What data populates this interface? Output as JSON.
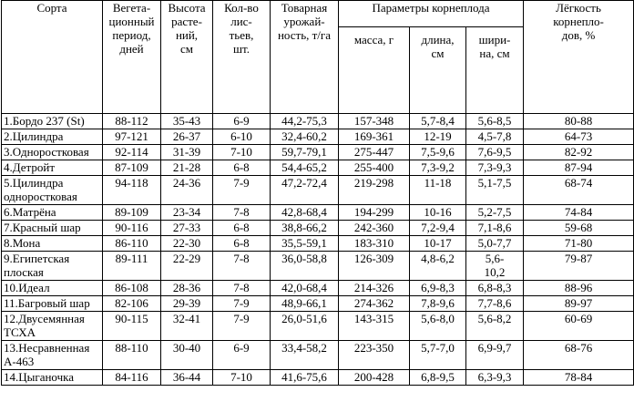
{
  "headers": {
    "variety": "Сорта",
    "veg_period": "Вегета-\nционный\nпериод,\nдней",
    "height": "Высота\nрасте-\nний,\nсм",
    "leaves": "Кол-во\nлис-\nтьев,\nшт.",
    "yield": "Товарная\nурожай-\nность, т/га",
    "root_params": "Параметры корнеплода",
    "mass": "масса, г",
    "length": "длина,\nсм",
    "width": "шири-\nна, см",
    "ease": "Лёгкость\nкорнепло-\nдов, %"
  },
  "rows": [
    {
      "name": "1.Бордо 237 (St)",
      "veg": "88-112",
      "height": "35-43",
      "leaves": "6-9",
      "yield": "44,2-75,3",
      "mass": "157-348",
      "length": "5,7-8,4",
      "width": "5,6-8,5",
      "ease": "80-88"
    },
    {
      "name": "2.Цилиндра",
      "veg": "97-121",
      "height": "26-37",
      "leaves": "6-10",
      "yield": "32,4-60,2",
      "mass": "169-361",
      "length": "12-19",
      "width": "4,5-7,8",
      "ease": "64-73"
    },
    {
      "name": "3.Одноростковая",
      "veg": "92-114",
      "height": "31-39",
      "leaves": "7-10",
      "yield": "59,7-79,1",
      "mass": "275-447",
      "length": "7,5-9,6",
      "width": "7,6-9,5",
      "ease": "82-92"
    },
    {
      "name": "4.Детройт",
      "veg": "87-109",
      "height": "21-28",
      "leaves": "6-8",
      "yield": "54,4-65,2",
      "mass": "255-400",
      "length": "7,3-9,2",
      "width": "7,3-9,3",
      "ease": "87-94"
    },
    {
      "name": "5.Цилиндра\nодноростковая",
      "veg": "94-118",
      "height": "24-36",
      "leaves": "7-9",
      "yield": "47,2-72,4",
      "mass": "219-298",
      "length": "11-18",
      "width": "5,1-7,5",
      "ease": "68-74"
    },
    {
      "name": "6.Матрёна",
      "veg": "89-109",
      "height": "23-34",
      "leaves": "7-8",
      "yield": "42,8-68,4",
      "mass": "194-299",
      "length": "10-16",
      "width": "5,2-7,5",
      "ease": "74-84"
    },
    {
      "name": "7.Красный шар",
      "veg": "90-116",
      "height": "27-33",
      "leaves": "6-8",
      "yield": "38,8-66,2",
      "mass": "242-360",
      "length": "7,2-9,4",
      "width": "7,1-8,6",
      "ease": "59-68"
    },
    {
      "name": "8.Мона",
      "veg": "86-110",
      "height": "22-30",
      "leaves": "6-8",
      "yield": "35,5-59,1",
      "mass": "183-310",
      "length": "10-17",
      "width": "5,0-7,7",
      "ease": "71-80"
    },
    {
      "name": "9.Египетская\nплоская",
      "veg": "89-111",
      "height": "22-29",
      "leaves": "7-8",
      "yield": "36,0-58,8",
      "mass": "126-309",
      "length": "4,8-6,2",
      "width": "5,6-\n10,2",
      "ease": "79-87"
    },
    {
      "name": "10.Идеал",
      "veg": "86-108",
      "height": "28-36",
      "leaves": "7-8",
      "yield": "42,0-68,4",
      "mass": "214-326",
      "length": "6,9-8,3",
      "width": "6,8-8,3",
      "ease": "88-96"
    },
    {
      "name": "11.Багровый шар",
      "veg": "82-106",
      "height": "29-39",
      "leaves": "7-9",
      "yield": "48,9-66,1",
      "mass": "274-362",
      "length": "7,8-9,6",
      "width": "7,7-8,6",
      "ease": "89-97"
    },
    {
      "name": "12.Двусемянная\nТСХА",
      "veg": "90-115",
      "height": "32-41",
      "leaves": "7-9",
      "yield": "26,0-51,6",
      "mass": "143-315",
      "length": "5,6-8,0",
      "width": "5,6-8,2",
      "ease": "60-69"
    },
    {
      "name": "13.Несравненная\nА-463",
      "veg": "88-110",
      "height": "30-40",
      "leaves": "6-9",
      "yield": "33,4-58,2",
      "mass": "223-350",
      "length": "5,7-7,0",
      "width": "6,9-9,7",
      "ease": "68-76"
    },
    {
      "name": "14.Цыганочка",
      "veg": "84-116",
      "height": "36-44",
      "leaves": "7-10",
      "yield": "41,6-75,6",
      "mass": "200-428",
      "length": "6,8-9,5",
      "width": "6,3-9,3",
      "ease": "78-84"
    }
  ]
}
